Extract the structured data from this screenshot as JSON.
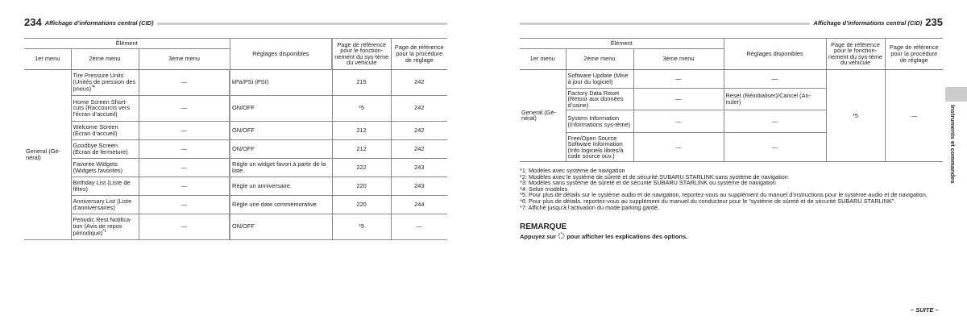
{
  "left": {
    "page_number": "234",
    "title": "Affichage d’informations central (CID)"
  },
  "right": {
    "page_number": "235",
    "title": "Affichage d’informations central (CID)"
  },
  "headers": {
    "element": "Élément",
    "menu1": "1er menu",
    "menu2": "2ème menu",
    "menu3": "3ème menu",
    "settings": "Réglages disponibles",
    "ref_system": "Page de référence pour le fonction-nement du sys-tème du véhicule",
    "ref_procedure": "Page de référence pour la procédure de réglage"
  },
  "left_table": {
    "menu1": "General (Gé-néral)",
    "rows": [
      {
        "menu2": "Tire Pressure Units (Unités de pression des pneus)",
        "sup": "*4",
        "menu3": "—",
        "settings": "kPa/PSi (PSI)",
        "ref1": "215",
        "ref2": "242"
      },
      {
        "menu2": "Home Screen Short-cuts (Raccourcis vers l’écran d’accueil)",
        "sup": "",
        "menu3": "—",
        "settings": "ON/OFF",
        "ref1": "*5",
        "ref2": "242"
      },
      {
        "menu2": "Welcome Screen (Écran d’accueil)",
        "sup": "",
        "menu3": "—",
        "settings": "ON/OFF",
        "ref1": "212",
        "ref2": "242"
      },
      {
        "menu2": "Goodbye Screen (Écran de fermeture)",
        "sup": "",
        "menu3": "—",
        "settings": "ON/OFF",
        "ref1": "212",
        "ref2": "242"
      },
      {
        "menu2": "Favorite Widgets (Widgets favorites)",
        "sup": "",
        "menu3": "—",
        "settings": "Règle un widget favori à partir de la liste.",
        "ref1": "222",
        "ref2": "243"
      },
      {
        "menu2": "Birthday List (Liste de fêtes)",
        "sup": "",
        "menu3": "—",
        "settings": "Règle un anniversaire.",
        "ref1": "220",
        "ref2": "243"
      },
      {
        "menu2": "Anniversary List (Liste d’anniversaires)",
        "sup": "",
        "menu3": "—",
        "settings": "Règle une date commémorative.",
        "ref1": "220",
        "ref2": "244"
      },
      {
        "menu2": "Periodic Rest Notifica-tion (Avis de repos périodique)",
        "sup": "*1",
        "menu3": "—",
        "settings": "ON/OFF",
        "ref1": "*5",
        "ref2": "—"
      }
    ]
  },
  "right_table": {
    "menu1": "General (Gé-néral)",
    "ref1": "*5",
    "ref2": "—",
    "rows": [
      {
        "menu2": "Software Update (Mise à jour du logiciel)",
        "menu3": "—",
        "settings": "—"
      },
      {
        "menu2": "Factory Data Reset (Retour aux données d’usine)",
        "menu3": "—",
        "settings": "Reset (Réinitialiser)/Cancel (An-nuler)"
      },
      {
        "menu2": "System Information (Informations sys-tème)",
        "menu3": "—",
        "settings": "—"
      },
      {
        "menu2": "Free/Open Source Software Information (Info logiciels libres/à code source ouv.)",
        "menu3": "—",
        "settings": "—"
      }
    ]
  },
  "notes": [
    "*1: Modèles avec système de navigation",
    "*2: Modèles avec le système de sûreté et de sécurité SUBARU STARLINK sans système de navigation",
    "*3: Modèles sans système de sûreté et de sécurité SUBARU STARLINK ou système de navigation",
    "*4: Selon modèles",
    "*5: Pour plus de détails sur le système audio et de navigation, reportez-vous au supplément du manuel d’instructions pour le système audio et de navigation.",
    "*6: Pour plus de détails, reportez-vous au supplément du manuel du conducteur pour le “système de sûreté et de sécurité SUBARU STARLINK”.",
    "*7: Affiché jusqu’à l’activation du mode parking gardé."
  ],
  "remark": {
    "title": "REMARQUE",
    "before": "Appuyez sur",
    "icon": "info-dots-icon",
    "after": "pour afficher les explications des options."
  },
  "side_tab": "Instruments et commandes",
  "continued": "– SUITE –"
}
